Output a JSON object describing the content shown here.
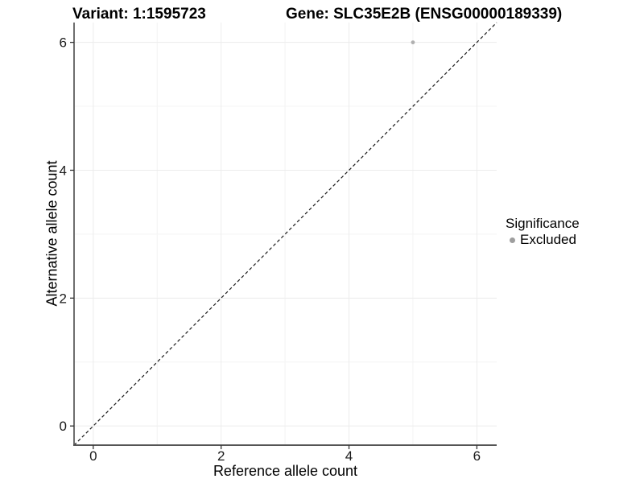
{
  "titles": {
    "left": "Variant: 1:1595723",
    "right": "Gene: SLC35E2B (ENSG00000189339)"
  },
  "chart_data": {
    "type": "scatter",
    "title_left": "Variant: 1:1595723",
    "title_right": "Gene: SLC35E2B (ENSG00000189339)",
    "xlabel": "Reference allele count",
    "ylabel": "Alternative allele count",
    "xlim": [
      -0.3,
      6.31
    ],
    "ylim": [
      -0.3,
      6.31
    ],
    "x_major_ticks": [
      0,
      2,
      4,
      6
    ],
    "x_minor_ticks": [
      1,
      3,
      5
    ],
    "y_major_ticks": [
      0,
      2,
      4,
      6
    ],
    "y_minor_ticks": [
      1,
      3,
      5
    ],
    "grid": "on",
    "identity_line": {
      "shown": true,
      "style": "dashed",
      "from": -0.3,
      "to": 6.31
    },
    "series": [
      {
        "name": "Excluded",
        "color": "#aaaaaa",
        "points": [
          {
            "x": 5,
            "y": 6
          }
        ]
      }
    ],
    "legend": {
      "title": "Significance",
      "position": "right",
      "items": [
        {
          "label": "Excluded",
          "color": "#9e9e9e"
        }
      ]
    }
  },
  "colors": {
    "background": "#ffffff",
    "grid_major": "#ececec",
    "grid_minor": "#f4f4f4",
    "axis_line": "#555555",
    "tick_mark": "#333333",
    "tick_text": "#1a1a1a",
    "identity_line": "#1a1a1a",
    "point": "#b0b0b0"
  }
}
